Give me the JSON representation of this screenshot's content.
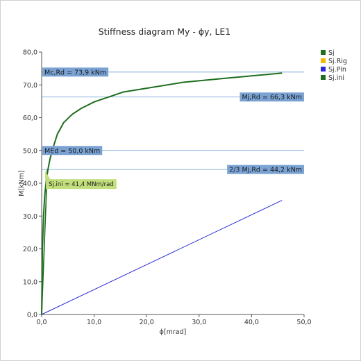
{
  "chart_data": {
    "type": "line",
    "title": "Stiffness diagram My - ϕy, LE1",
    "xlabel": "ϕ[mrad]",
    "ylabel": "M[kNm]",
    "xlim": [
      0,
      50
    ],
    "ylim": [
      0,
      80
    ],
    "x_ticks": [
      "0,0",
      "10,0",
      "20,0",
      "30,0",
      "40,0",
      "50,0"
    ],
    "y_ticks": [
      "0,0",
      "10,0",
      "20,0",
      "30,0",
      "40,0",
      "50,0",
      "60,0",
      "70,0",
      "80,0"
    ],
    "grid": false,
    "legend_position": "top-right",
    "colors": {
      "sj": "#1e6e1e",
      "sj_rig": "#f5b800",
      "sj_pin": "#2b2bd6",
      "sj_ini": "#1e6e1e",
      "ref_line": "#6d9ed0",
      "ref_label_bg": "#7aa3d4",
      "sjini_label_bg": "#c3de7d",
      "axis": "#555555"
    },
    "series": [
      {
        "name": "Sj",
        "key": "sj",
        "x": [
          0.0,
          0.15,
          0.35,
          0.6,
          0.9,
          1.2,
          1.6,
          2.2,
          3.0,
          4.2,
          5.8,
          7.5,
          10.0,
          15.5,
          27.0,
          35.0,
          45.8
        ],
        "y": [
          0.0,
          20.0,
          30.0,
          36.5,
          41.0,
          44.2,
          47.5,
          51.0,
          55.0,
          58.5,
          61.0,
          62.8,
          64.8,
          67.8,
          70.8,
          72.0,
          73.6
        ]
      },
      {
        "name": "Sj.Rig",
        "key": "sj_rig",
        "x": [],
        "y": []
      },
      {
        "name": "Sj.Pin",
        "key": "sj_pin",
        "x": [
          0.0,
          45.8
        ],
        "y": [
          0.0,
          34.8
        ]
      },
      {
        "name": "Sj.ini",
        "key": "sj_ini",
        "x": [
          0.0,
          1.07
        ],
        "y": [
          0.0,
          44.2
        ]
      }
    ],
    "reference_lines": [
      {
        "key": "mc_rd",
        "value": 73.9,
        "label": "Mc,Rd = 73,9 kNm",
        "label_side": "left"
      },
      {
        "key": "mj_rd",
        "value": 66.3,
        "label": "Mj,Rd = 66,3 kNm",
        "label_side": "right"
      },
      {
        "key": "med",
        "value": 50.0,
        "label": "MEd = 50,0 kNm",
        "label_side": "left"
      },
      {
        "key": "two_thirds_mj_rd",
        "value": 44.2,
        "label": "2/3 Mj,Rd = 44,2 kNm",
        "label_side": "right"
      }
    ],
    "sj_ini_annotation": {
      "label": "Sj.ini = 41,4 MNm/rad",
      "anchor_x": 1.07,
      "anchor_y": 44.2
    }
  }
}
